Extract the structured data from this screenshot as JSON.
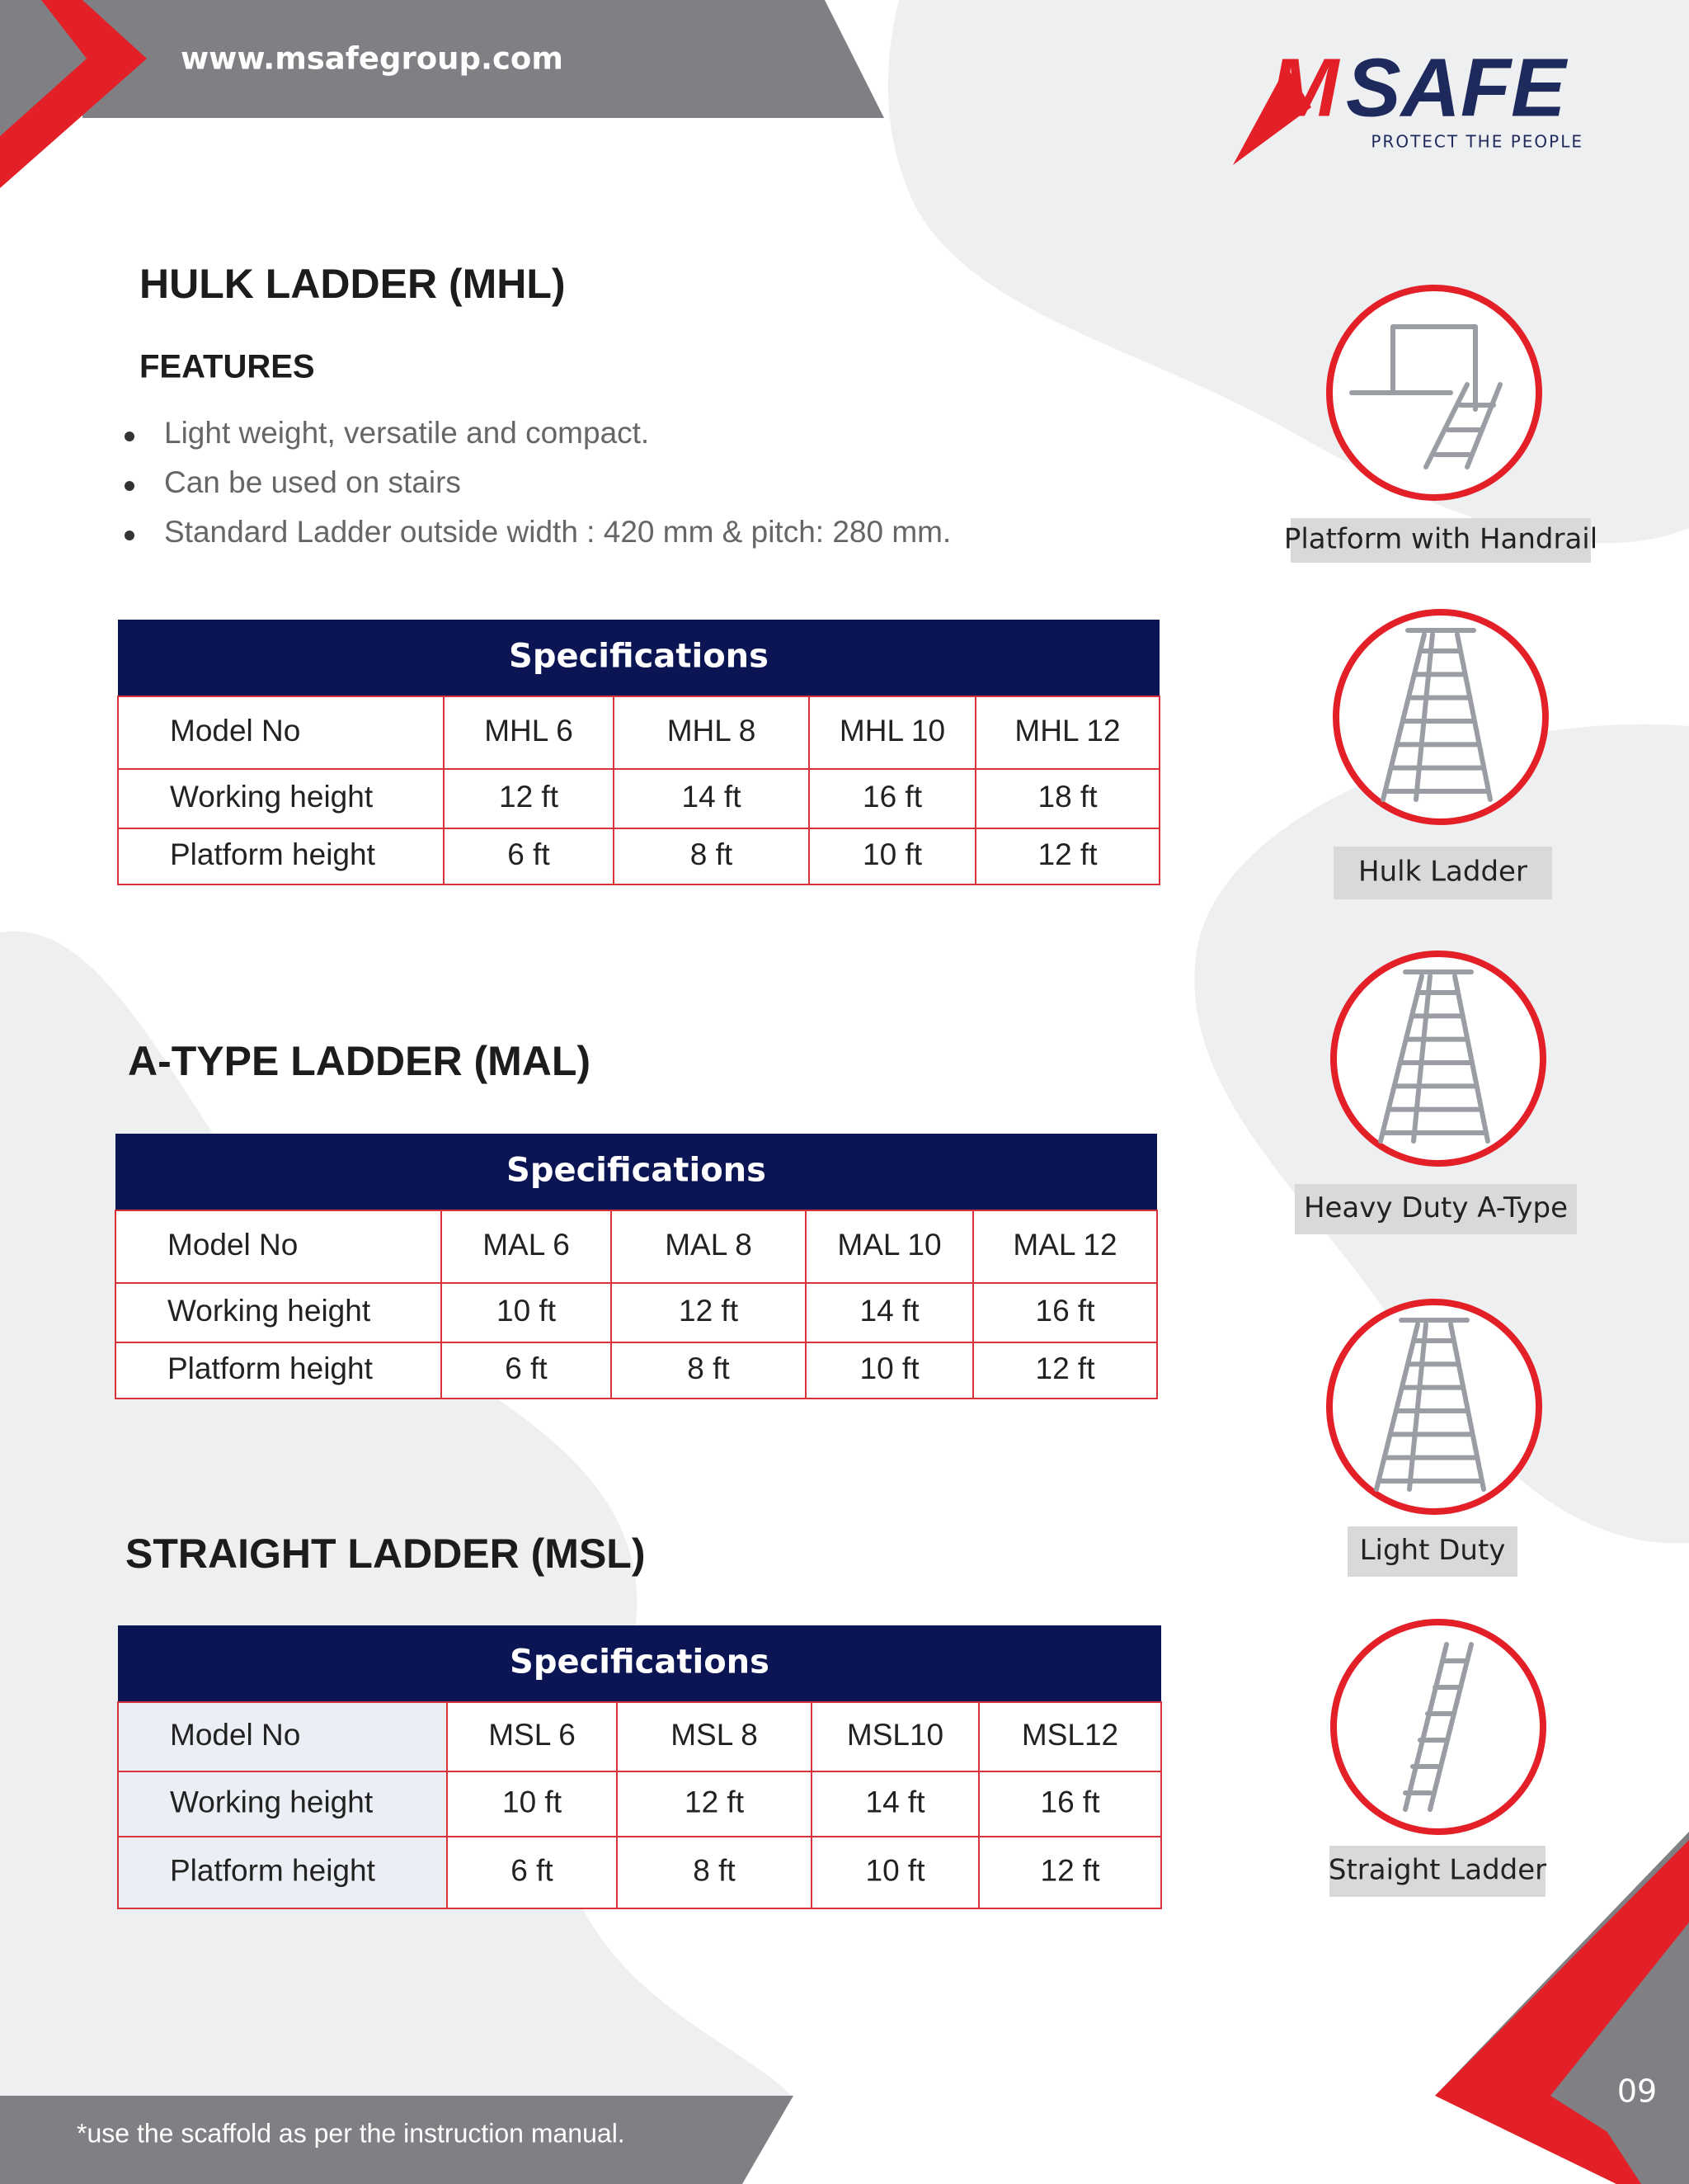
{
  "header": {
    "url": "www.msafegroup.com"
  },
  "logo": {
    "initial": "M",
    "rest": "SAFE",
    "tagline": "PROTECT THE PEOPLE"
  },
  "sections": [
    {
      "title": "HULK LADDER (MHL)",
      "features_heading": "FEATURES",
      "features": [
        "Light weight, versatile and compact.",
        "Can be used on stairs",
        "Standard Ladder outside width : 420 mm &  pitch: 280 mm."
      ],
      "table": {
        "caption": "Specifications",
        "rows": [
          [
            "Model No",
            "MHL 6",
            "MHL 8",
            "MHL 10",
            "MHL 12"
          ],
          [
            "Working height",
            "12 ft",
            "14 ft",
            "16 ft",
            "18 ft"
          ],
          [
            "Platform height",
            "6 ft",
            "8 ft",
            "10 ft",
            "12 ft"
          ]
        ]
      }
    },
    {
      "title": "A-TYPE LADDER (MAL)",
      "table": {
        "caption": "Specifications",
        "rows": [
          [
            "Model No",
            "MAL 6",
            "MAL 8",
            "MAL 10",
            "MAL 12"
          ],
          [
            "Working height",
            "10 ft",
            "12 ft",
            "14 ft",
            "16 ft"
          ],
          [
            "Platform height",
            "6 ft",
            "8 ft",
            "10 ft",
            "12 ft"
          ]
        ]
      }
    },
    {
      "title": "STRAIGHT LADDER (MSL)",
      "table": {
        "caption": "Specifications",
        "rows": [
          [
            "Model No",
            "MSL 6",
            "MSL 8",
            "MSL10",
            "MSL12"
          ],
          [
            "Working height",
            "10 ft",
            "12 ft",
            "14 ft",
            "16 ft"
          ],
          [
            "Platform height",
            "6 ft",
            "8 ft",
            "10 ft",
            "12 ft"
          ]
        ]
      }
    }
  ],
  "products": [
    "Platform with Handrail",
    "Hulk Ladder",
    "Heavy Duty A-Type",
    "Light Duty",
    "Straight Ladder"
  ],
  "footer": {
    "note": "*use the scaffold as per the instruction manual.",
    "page": "09"
  }
}
